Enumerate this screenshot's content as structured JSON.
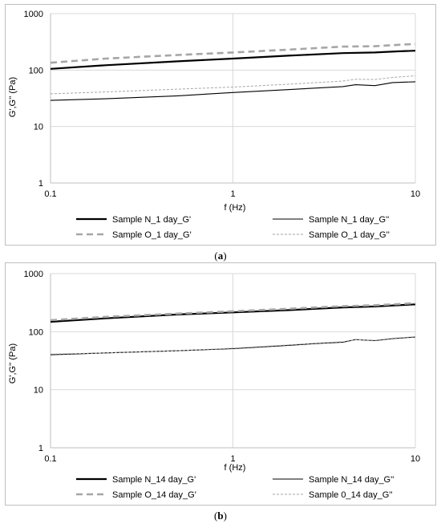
{
  "chart_data": [
    {
      "type": "line",
      "panel_label": "a",
      "xscale": "log",
      "yscale": "log",
      "xlim": [
        0.1,
        10
      ],
      "ylim": [
        1,
        1000
      ],
      "xticks": [
        "0.1",
        "1",
        "10"
      ],
      "yticks": [
        "1",
        "10",
        "100",
        "1000"
      ],
      "xlabel": "f (Hz)",
      "ylabel": "G',G'' (Pa)",
      "grid": true,
      "legend_position": "bottom",
      "series": [
        {
          "name": "Sample N_1 day_G'",
          "color": "#000000",
          "style": "solid-thick",
          "x": [
            0.1,
            0.2,
            0.5,
            1,
            2,
            4,
            6,
            8,
            10
          ],
          "y": [
            105,
            122,
            143,
            160,
            180,
            200,
            205,
            215,
            220
          ]
        },
        {
          "name": "Sample N_1 day_G''",
          "color": "#000000",
          "style": "solid-thin",
          "x": [
            0.1,
            0.2,
            0.5,
            1,
            2,
            4,
            4.7,
            6,
            7.5,
            10
          ],
          "y": [
            29,
            31,
            35,
            40,
            45,
            51,
            55,
            53,
            60,
            62
          ]
        },
        {
          "name": "Sample O_1 day_G'",
          "color": "#a6a6a6",
          "style": "dashed-thick",
          "x": [
            0.1,
            0.2,
            0.5,
            1,
            2,
            4,
            6,
            8,
            10
          ],
          "y": [
            135,
            160,
            185,
            205,
            230,
            260,
            265,
            280,
            290
          ]
        },
        {
          "name": "Sample O_1 day_G''",
          "color": "#a6a6a6",
          "style": "dashed-thin",
          "x": [
            0.1,
            0.2,
            0.5,
            1,
            2,
            4,
            4.7,
            6,
            7.5,
            10
          ],
          "y": [
            38,
            41,
            46,
            50,
            56,
            64,
            69,
            68,
            74,
            79
          ]
        }
      ]
    },
    {
      "type": "line",
      "panel_label": "b",
      "xscale": "log",
      "yscale": "log",
      "xlim": [
        0.1,
        10
      ],
      "ylim": [
        1,
        1000
      ],
      "xticks": [
        "0.1",
        "1",
        "10"
      ],
      "yticks": [
        "1",
        "10",
        "100",
        "1000"
      ],
      "xlabel": "f (Hz)",
      "ylabel": "G',G'' (Pa)",
      "grid": true,
      "legend_position": "bottom",
      "series": [
        {
          "name": "Sample N_14 day_G'",
          "color": "#000000",
          "style": "solid-thick",
          "x": [
            0.1,
            0.2,
            0.5,
            1,
            2,
            4,
            6,
            8,
            10
          ],
          "y": [
            148,
            170,
            198,
            215,
            235,
            262,
            272,
            285,
            295
          ]
        },
        {
          "name": "Sample N_14 day_G''",
          "color": "#000000",
          "style": "solid-thin",
          "x": [
            0.1,
            0.2,
            0.5,
            1,
            2,
            3,
            4,
            4.7,
            6,
            7.5,
            10
          ],
          "y": [
            40,
            43,
            47,
            51,
            58,
            63,
            66,
            73,
            70,
            76,
            81
          ]
        },
        {
          "name": "Sample O_14 day_G'",
          "color": "#a6a6a6",
          "style": "dashed-thick",
          "x": [
            0.1,
            0.2,
            0.5,
            1,
            2,
            4,
            6,
            8,
            10
          ],
          "y": [
            158,
            180,
            205,
            225,
            248,
            275,
            285,
            298,
            310
          ]
        },
        {
          "name": "Sample 0_14 day_G''",
          "color": "#a6a6a6",
          "style": "dashed-thin",
          "x": [
            0.1,
            0.2,
            0.5,
            1,
            2,
            3,
            4,
            4.7,
            6,
            7.5,
            10
          ],
          "y": [
            41,
            43,
            47,
            52,
            59,
            64,
            67,
            73,
            71,
            77,
            82
          ]
        }
      ]
    }
  ]
}
